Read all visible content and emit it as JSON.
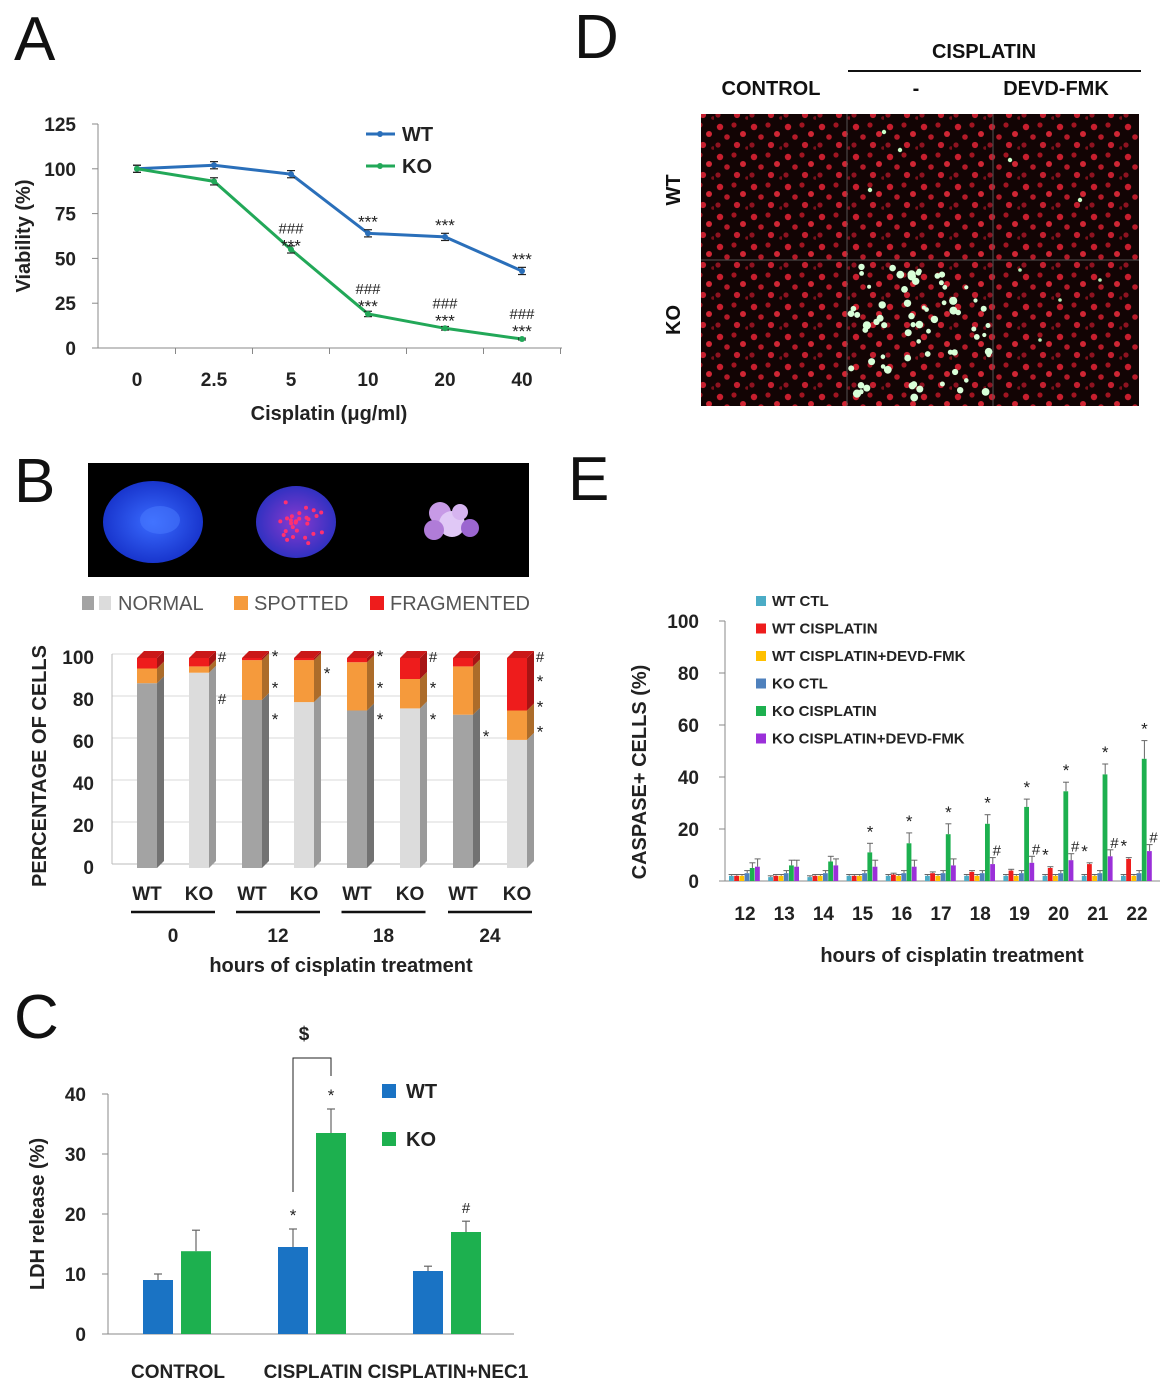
{
  "panels": {
    "a": {
      "letter": "A"
    },
    "b": {
      "letter": "B"
    },
    "c": {
      "letter": "C"
    },
    "d": {
      "letter": "D"
    },
    "e": {
      "letter": "E"
    }
  },
  "colors": {
    "wt_line": "#2a6fba",
    "ko_line": "#22a858",
    "normal_wt": "#a3a3a3",
    "normal_ko": "#dcdcdc",
    "spotted": "#f59a3c",
    "fragmented": "#ee1c1c",
    "c_wt": "#1a73c4",
    "c_ko": "#1db04f",
    "e_wt_ctl": "#4bacc6",
    "e_wt_cis": "#ee1c1c",
    "e_wt_cis_devd": "#ffc000",
    "e_ko_ctl": "#4f81bd",
    "e_ko_cis": "#1db04f",
    "e_ko_cis_devd": "#9b30d9"
  },
  "panel_d": {
    "header": "CISPLATIN",
    "columns": [
      "CONTROL",
      "-",
      "DEVD-FMK"
    ],
    "rows": [
      "WT",
      "KO"
    ]
  },
  "panel_b_legend": [
    "NORMAL",
    "SPOTTED",
    "FRAGMENTED"
  ],
  "chart_data": [
    {
      "id": "A",
      "type": "line",
      "title": "",
      "xlabel": "Cisplatin (μg/ml)",
      "ylabel": "Viability (%)",
      "categories": [
        "0",
        "2.5",
        "5",
        "10",
        "20",
        "40"
      ],
      "ylim": [
        0,
        125
      ],
      "yticks": [
        0,
        25,
        50,
        75,
        100,
        125
      ],
      "series": [
        {
          "name": "WT",
          "values": [
            100,
            102,
            97,
            64,
            62,
            43
          ],
          "errors": [
            2,
            2,
            2,
            2,
            2,
            2
          ]
        },
        {
          "name": "KO",
          "values": [
            100,
            93,
            55,
            19,
            11,
            5
          ],
          "errors": [
            2,
            2,
            2,
            1.5,
            1,
            0.5
          ]
        }
      ],
      "annotations": [
        {
          "series": "WT",
          "x": "10",
          "text": "***"
        },
        {
          "series": "WT",
          "x": "20",
          "text": "***"
        },
        {
          "series": "WT",
          "x": "40",
          "text": "***"
        },
        {
          "series": "KO",
          "x": "5",
          "text": "***",
          "sub": "###"
        },
        {
          "series": "KO",
          "x": "10",
          "text": "***",
          "sub": "###"
        },
        {
          "series": "KO",
          "x": "20",
          "text": "***",
          "sub": "###"
        },
        {
          "series": "KO",
          "x": "40",
          "text": "***",
          "sub": "###"
        }
      ]
    },
    {
      "id": "B",
      "type": "bar",
      "stacked": true,
      "title": "",
      "xlabel": "hours of cisplatin treatment",
      "ylabel": "PERCENTAGE OF CELLS",
      "ylim": [
        0,
        100
      ],
      "yticks": [
        0,
        20,
        40,
        60,
        80,
        100
      ],
      "groups": [
        "0",
        "12",
        "18",
        "24"
      ],
      "bar_labels": [
        "WT",
        "KO"
      ],
      "legend": [
        "NORMAL",
        "SPOTTED",
        "FRAGMENTED"
      ],
      "bars": [
        {
          "group": "0",
          "genotype": "WT",
          "normal": 88,
          "spotted": 7,
          "fragmented": 5,
          "marks": []
        },
        {
          "group": "0",
          "genotype": "KO",
          "normal": 93,
          "spotted": 3,
          "fragmented": 4,
          "marks": [
            "#",
            "#"
          ]
        },
        {
          "group": "12",
          "genotype": "WT",
          "normal": 80,
          "spotted": 19,
          "fragmented": 1,
          "marks": [
            "*",
            "*",
            "*"
          ]
        },
        {
          "group": "12",
          "genotype": "KO",
          "normal": 79,
          "spotted": 20,
          "fragmented": 1,
          "marks": [
            "*"
          ]
        },
        {
          "group": "18",
          "genotype": "WT",
          "normal": 75,
          "spotted": 23,
          "fragmented": 2,
          "marks": [
            "*",
            "*",
            "*"
          ]
        },
        {
          "group": "18",
          "genotype": "KO",
          "normal": 76,
          "spotted": 14,
          "fragmented": 10,
          "marks": [
            "#",
            "*",
            "*"
          ]
        },
        {
          "group": "24",
          "genotype": "WT",
          "normal": 73,
          "spotted": 23,
          "fragmented": 4,
          "marks": [
            "*"
          ]
        },
        {
          "group": "24",
          "genotype": "KO",
          "normal": 61,
          "spotted": 14,
          "fragmented": 25,
          "marks": [
            "#",
            "*",
            "*",
            "*"
          ]
        }
      ]
    },
    {
      "id": "C",
      "type": "bar",
      "title": "",
      "xlabel": "",
      "ylabel": "LDH release (%)",
      "ylim": [
        0,
        40
      ],
      "yticks": [
        0,
        10,
        20,
        30,
        40
      ],
      "categories": [
        "CONTROL",
        "CISPLATIN",
        "CISPLATIN+NEC1"
      ],
      "series": [
        {
          "name": "WT",
          "values": [
            9,
            14.5,
            10.5
          ],
          "errors": [
            1,
            3,
            0.8
          ],
          "marks": [
            "",
            "*",
            ""
          ]
        },
        {
          "name": "KO",
          "values": [
            13.8,
            33.5,
            17
          ],
          "errors": [
            3.5,
            4,
            1.8
          ],
          "marks": [
            "",
            "*",
            "#"
          ]
        }
      ],
      "bracket": {
        "from": "CISPLATIN WT",
        "to": "CISPLATIN KO",
        "text": "$"
      }
    },
    {
      "id": "E",
      "type": "bar",
      "title": "",
      "xlabel": "hours of cisplatin treatment",
      "ylabel": "CASPASE+ CELLS (%)",
      "ylim": [
        0,
        100
      ],
      "yticks": [
        0,
        20,
        40,
        60,
        80,
        100
      ],
      "categories": [
        "12",
        "13",
        "14",
        "15",
        "16",
        "17",
        "18",
        "19",
        "20",
        "21",
        "22"
      ],
      "series": [
        {
          "name": "WT CTL",
          "values": [
            2,
            1.5,
            1.5,
            2,
            2,
            2,
            2,
            2,
            2,
            2,
            2
          ],
          "errors": [
            0.5,
            0.5,
            0.5,
            0.5,
            0.5,
            0.5,
            0.5,
            0.5,
            0.5,
            0.5,
            0.5
          ],
          "marks": []
        },
        {
          "name": "WT CISPLATIN",
          "values": [
            2,
            2,
            2,
            2,
            2.5,
            3,
            3.5,
            4,
            5,
            6.5,
            8.5
          ],
          "errors": [
            0.5,
            0.5,
            0.5,
            0.5,
            0.5,
            0.5,
            0.5,
            0.5,
            0.5,
            0.5,
            0.5
          ],
          "marks": [
            "",
            "",
            "",
            "",
            "",
            "",
            "",
            "",
            "*",
            "*",
            "*"
          ]
        },
        {
          "name": "WT CISPLATIN+DEVD-FMK",
          "values": [
            2,
            2,
            2,
            2,
            2,
            2,
            2,
            2,
            2,
            2,
            2
          ],
          "errors": [
            0.5,
            0.5,
            0.5,
            0.5,
            0.5,
            0.5,
            0.5,
            0.5,
            0.5,
            0.5,
            0.5
          ],
          "marks": []
        },
        {
          "name": "KO CTL",
          "values": [
            3,
            3,
            3,
            3,
            3,
            3,
            3,
            3,
            3,
            3,
            3
          ],
          "errors": [
            1,
            1,
            1,
            1,
            1,
            1,
            1,
            1,
            1,
            1,
            1
          ],
          "marks": []
        },
        {
          "name": "KO CISPLATIN",
          "values": [
            5,
            6,
            7.5,
            11,
            14.5,
            18,
            22,
            28.5,
            34.5,
            41,
            47
          ],
          "errors": [
            2,
            2,
            2,
            3.5,
            4,
            4,
            3.5,
            3,
            3.5,
            4,
            7
          ],
          "marks": [
            "",
            "",
            "",
            "*",
            "*",
            "*",
            "*",
            "*",
            "*",
            "*",
            "*"
          ]
        },
        {
          "name": "KO CISPLATIN+DEVD-FMK",
          "values": [
            5.5,
            5.5,
            6,
            5.5,
            5.5,
            6,
            6.5,
            7,
            8,
            9.5,
            11.5
          ],
          "errors": [
            3,
            2.5,
            2.5,
            2.5,
            2.5,
            2.5,
            2.5,
            2.5,
            2.5,
            2.5,
            2.5
          ],
          "marks": [
            "",
            "",
            "",
            "",
            "",
            "",
            "#",
            "#",
            "#",
            "#",
            "#"
          ]
        }
      ]
    }
  ]
}
